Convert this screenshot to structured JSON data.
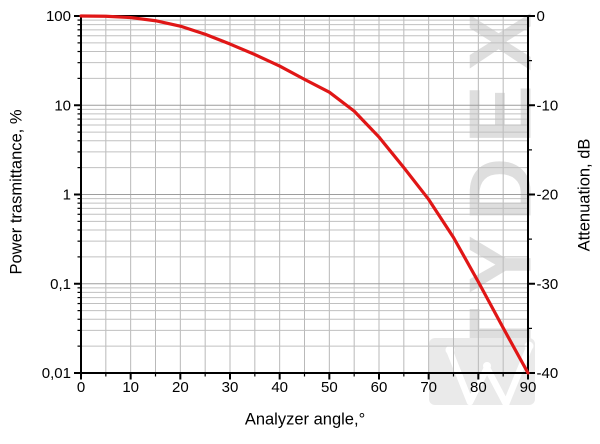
{
  "chart_data": {
    "type": "line",
    "title": "",
    "xlabel": "Analyzer angle,°",
    "ylabel_left": "Power trasmittance, %",
    "ylabel_right": "Attenuation, dB",
    "x": [
      0,
      5,
      10,
      15,
      20,
      25,
      30,
      35,
      40,
      45,
      50,
      55,
      60,
      65,
      70,
      75,
      80,
      85,
      90
    ],
    "series": [
      {
        "name": "power-transmittance-percent",
        "color": "#e01616",
        "values": [
          100,
          99.3,
          96,
          88.5,
          77,
          62.5,
          48.5,
          37,
          27.5,
          19.5,
          14,
          8.6,
          4.4,
          2.0,
          0.88,
          0.33,
          0.105,
          0.032,
          0.01
        ]
      }
    ],
    "xlim": [
      0,
      90
    ],
    "x_major_step": 10,
    "x_minor_step": 5,
    "y_scale": "log",
    "ylim": [
      0.01,
      100
    ],
    "right_axis": {
      "label": "Attenuation, dB",
      "lim": [
        0,
        -40
      ],
      "major_step": 10,
      "minor_step": 5,
      "relation": "dB = 10·log10(T%/100)"
    },
    "grid": true,
    "legend": "none",
    "x_tick_labels": [
      "0",
      "10",
      "20",
      "30",
      "40",
      "50",
      "60",
      "70",
      "80",
      "90"
    ],
    "y_left_tick_labels": [
      "100",
      "10",
      "1",
      "0,1",
      "0,01"
    ],
    "y_left_tick_values": [
      100,
      10,
      1,
      0.1,
      0.01
    ],
    "y_right_tick_labels": [
      "0",
      "-10",
      "-20",
      "-30",
      "-40"
    ]
  },
  "watermark": {
    "text": "TYDEX",
    "letter_color": "#dedede",
    "logo_block_color": "#eaeaea",
    "logo_mark_color": "#ffffff"
  },
  "colors": {
    "curve": "#e01616",
    "grid_minor": "#c0c0c0",
    "grid_major": "#9e9e9e",
    "grid_vertical": "#b9b9b9",
    "axis": "#000000",
    "background": "#ffffff",
    "text": "#000000"
  }
}
